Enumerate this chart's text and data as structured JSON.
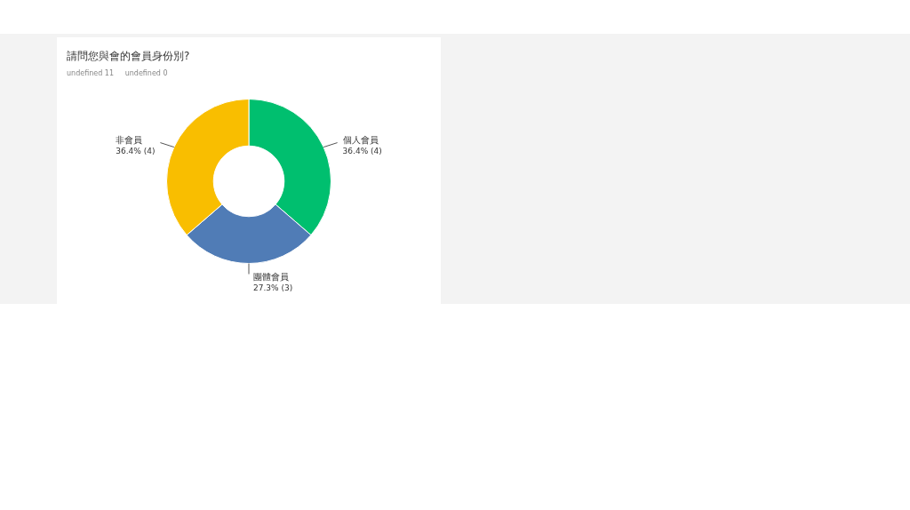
{
  "chart_data": {
    "type": "donut",
    "title": "請問您與會的會員身份別?",
    "subtitle": "undefined 11     undefined 0",
    "categories": [
      "個人會員",
      "團體會員",
      "非會員"
    ],
    "values": [
      4,
      3,
      4
    ],
    "colors": [
      "#00bf6f",
      "#507cb6",
      "#f9be00"
    ],
    "value_labels": [
      "36.4% (4)",
      "27.3% (3)",
      "36.4% (4)"
    ]
  }
}
